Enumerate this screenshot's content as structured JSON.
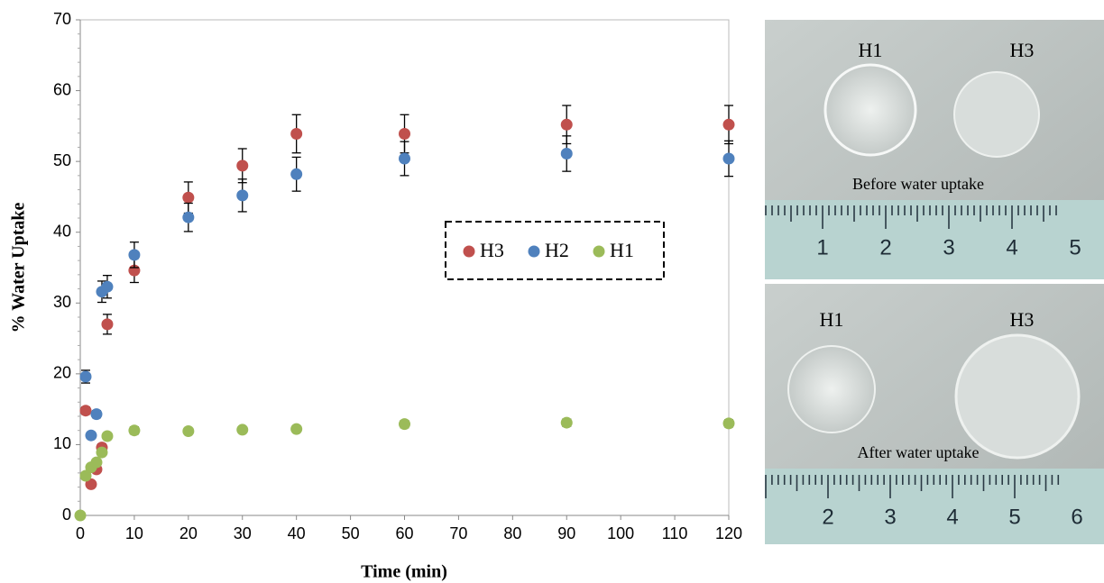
{
  "chart_data": {
    "type": "scatter",
    "xlabel": "Time (min)",
    "ylabel": "% Water Uptake",
    "xlim": [
      0,
      120
    ],
    "xticks": [
      0,
      10,
      20,
      30,
      40,
      50,
      60,
      70,
      80,
      90,
      100,
      110,
      120
    ],
    "ylim": [
      0,
      70
    ],
    "yticks": [
      0,
      10,
      20,
      30,
      40,
      50,
      60,
      70
    ],
    "legend": "center-right",
    "series": [
      {
        "name": "H3",
        "color": "#c0504d",
        "x": [
          1,
          2,
          3,
          4,
          5,
          10,
          20,
          30,
          40,
          60,
          90,
          120
        ],
        "values": [
          14.8,
          4.4,
          6.5,
          9.6,
          27,
          34.6,
          44.9,
          49.4,
          53.9,
          53.9,
          55.2,
          55.2
        ],
        "errors": [
          0.5,
          0.3,
          0.3,
          0.5,
          1.4,
          1.7,
          2.2,
          2.4,
          2.7,
          2.7,
          2.7,
          2.7
        ]
      },
      {
        "name": "H2",
        "color": "#4f81bd",
        "x": [
          1,
          2,
          3,
          4,
          5,
          10,
          20,
          30,
          40,
          60,
          90,
          120
        ],
        "values": [
          19.6,
          11.3,
          14.3,
          31.6,
          32.3,
          36.8,
          42.1,
          45.2,
          48.2,
          50.4,
          51.1,
          50.4
        ],
        "errors": [
          0.9,
          0.4,
          0.5,
          1.5,
          1.6,
          1.8,
          2.0,
          2.3,
          2.4,
          2.4,
          2.5,
          2.5
        ]
      },
      {
        "name": "H1",
        "color": "#9bbb59",
        "x": [
          0,
          1,
          2,
          3,
          4,
          5,
          10,
          20,
          30,
          40,
          60,
          90,
          120
        ],
        "values": [
          0,
          5.6,
          6.8,
          7.5,
          8.9,
          11.2,
          12,
          11.9,
          12.1,
          12.2,
          12.9,
          13.1,
          13
        ],
        "errors": [
          0.2,
          0.3,
          0.3,
          0.3,
          0.4,
          0.4,
          0.5,
          0.4,
          0.4,
          0.4,
          0.5,
          0.5,
          0.5
        ]
      }
    ]
  },
  "photos": [
    {
      "labels": [
        "H1",
        "H3"
      ],
      "caption": "Before water uptake",
      "ruler": [
        "1",
        "2",
        "3",
        "4",
        "5"
      ]
    },
    {
      "labels": [
        "H1",
        "H3"
      ],
      "caption": "After water uptake",
      "ruler": [
        "2",
        "3",
        "4",
        "5",
        "6"
      ]
    }
  ]
}
